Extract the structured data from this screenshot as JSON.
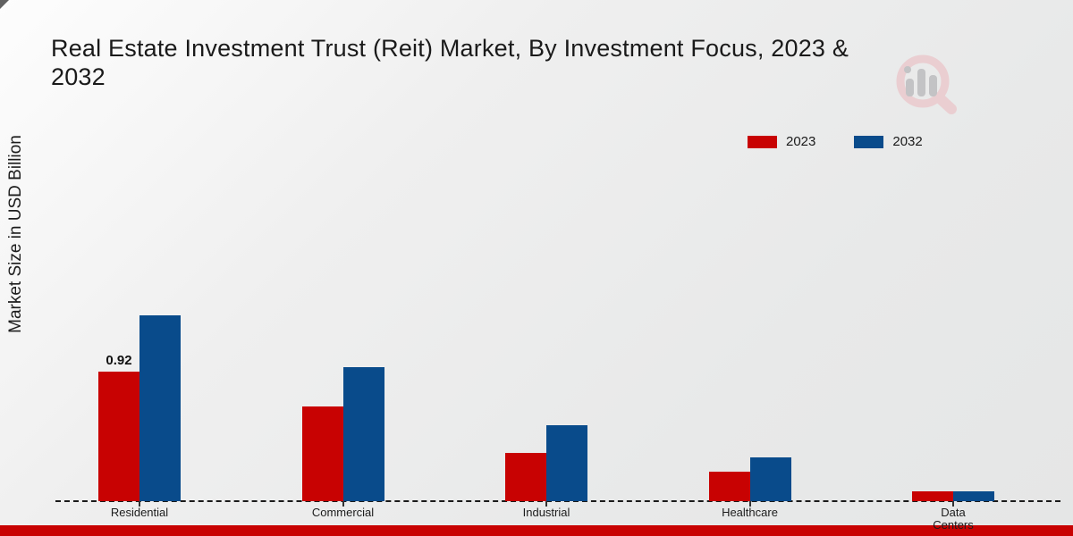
{
  "header": {
    "title": "Real Estate Investment Trust (Reit) Market, By Investment Focus, 2023 & 2032",
    "title_line1": "Real Estate Investment Trust (Reit) Market, By Investment Focus, 2023 &",
    "title_line2": "2032"
  },
  "chart_data": {
    "type": "bar",
    "title": "Real Estate Investment Trust (Reit) Market, By Investment Focus, 2023 & 2032",
    "ylabel": "Market Size in USD Billion",
    "xlabel": "",
    "categories": [
      "Residential",
      "Commercial",
      "Industrial",
      "Healthcare",
      "Data Centers"
    ],
    "series": [
      {
        "name": "2023",
        "color": "#c80202",
        "values": [
          0.92,
          0.67,
          0.34,
          0.21,
          0.07
        ]
      },
      {
        "name": "2032",
        "color": "#094b8b",
        "values": [
          1.32,
          0.95,
          0.54,
          0.31,
          0.07
        ]
      }
    ],
    "annotations": [
      {
        "series": "2023",
        "category": "Residential",
        "text": "0.92"
      }
    ],
    "ylim": [
      0,
      1.45
    ],
    "grid": false,
    "legend_position": "top-right",
    "baseline_style": "dashed"
  },
  "watermark": {
    "icon": "magnifier-bar-chart-logo",
    "ring_color": "#eaced1",
    "bar_color": "#c3c3c5"
  },
  "footer": {
    "color": "#c80202"
  }
}
